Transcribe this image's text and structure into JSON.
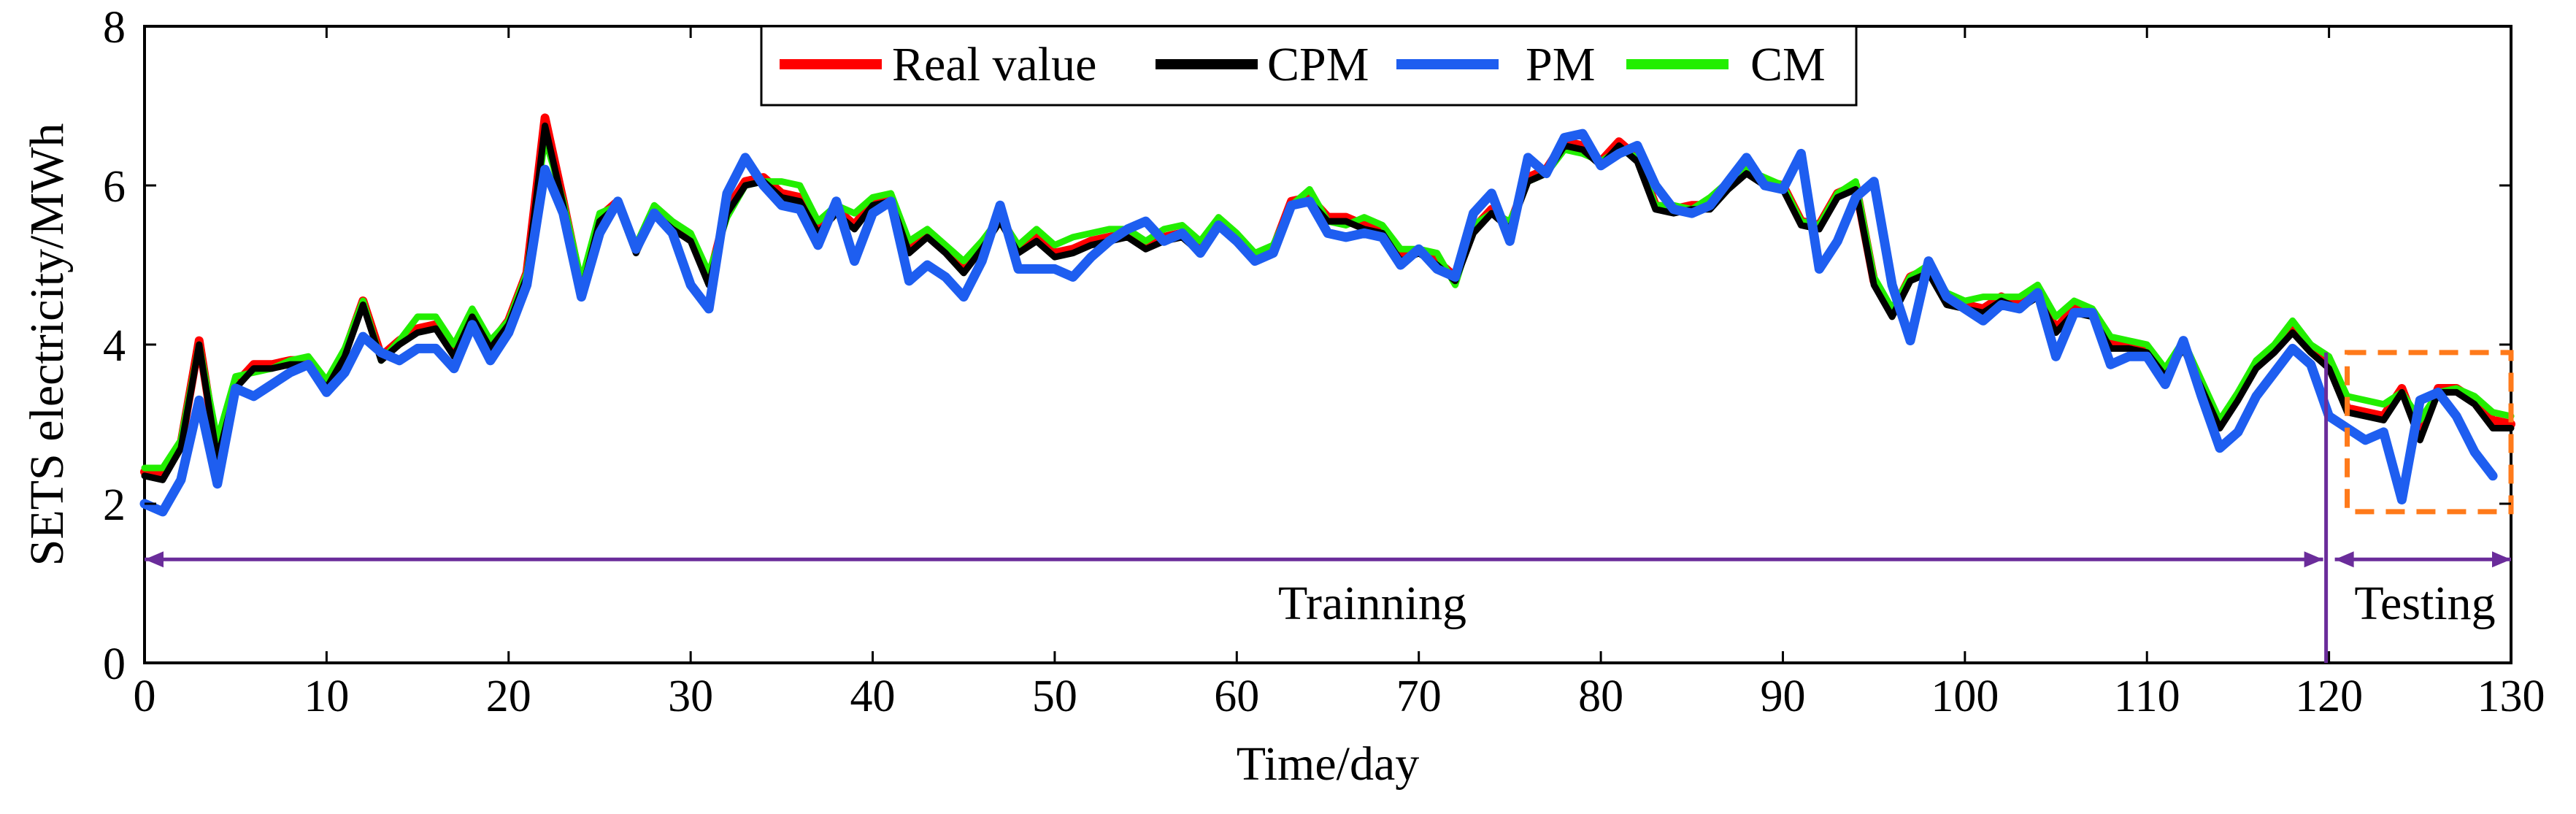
{
  "chart_data": {
    "type": "line",
    "title": "",
    "xlabel": "Time/day",
    "ylabel": "SETS electricity/MWh",
    "xlim": [
      0,
      130
    ],
    "ylim": [
      0,
      8
    ],
    "x_ticks": [
      0,
      10,
      20,
      30,
      40,
      50,
      60,
      70,
      80,
      90,
      100,
      110,
      120,
      130
    ],
    "y_ticks": [
      0,
      2,
      4,
      6,
      8
    ],
    "legend_position": "top-center",
    "grid": false,
    "series": [
      {
        "name": "Real value",
        "color": "#ff0000",
        "values": [
          2.4,
          2.35,
          2.75,
          4.05,
          2.6,
          3.5,
          3.75,
          3.75,
          3.8,
          3.8,
          3.5,
          3.9,
          4.55,
          3.85,
          4.05,
          4.2,
          4.25,
          3.9,
          4.4,
          4.0,
          4.3,
          4.9,
          6.85,
          5.8,
          4.7,
          5.6,
          5.8,
          5.2,
          5.7,
          5.5,
          5.35,
          4.8,
          5.7,
          6.05,
          6.1,
          5.9,
          5.85,
          5.45,
          5.7,
          5.5,
          5.8,
          5.85,
          5.2,
          5.4,
          5.2,
          4.95,
          5.25,
          5.6,
          5.2,
          5.35,
          5.15,
          5.2,
          5.3,
          5.35,
          5.4,
          5.25,
          5.35,
          5.4,
          5.2,
          5.55,
          5.35,
          5.1,
          5.2,
          5.8,
          5.85,
          5.6,
          5.6,
          5.5,
          5.45,
          5.1,
          5.2,
          5.05,
          4.85,
          5.45,
          5.7,
          5.5,
          6.1,
          6.2,
          6.55,
          6.5,
          6.3,
          6.55,
          6.35,
          5.75,
          5.7,
          5.75,
          5.75,
          6.0,
          6.2,
          6.05,
          6.0,
          5.55,
          5.5,
          5.9,
          6.0,
          4.8,
          4.4,
          4.85,
          4.95,
          4.55,
          4.5,
          4.45,
          4.6,
          4.5,
          4.65,
          4.2,
          4.45,
          4.4,
          4.0,
          4.0,
          3.95,
          3.65,
          4.0,
          3.5,
          3.0,
          3.35,
          3.75,
          3.95,
          4.2,
          3.95,
          3.75,
          3.2,
          3.15,
          3.1,
          3.45,
          2.85,
          3.45,
          3.45,
          3.3,
          3.05,
          3.0
        ],
        "legend_label": "Real value"
      },
      {
        "name": "CPM",
        "color": "#000000",
        "values": [
          2.35,
          2.3,
          2.7,
          4.0,
          2.55,
          3.45,
          3.7,
          3.7,
          3.75,
          3.75,
          3.45,
          3.85,
          4.5,
          3.8,
          4.0,
          4.15,
          4.2,
          3.85,
          4.35,
          3.95,
          4.25,
          4.85,
          6.75,
          5.75,
          4.65,
          5.55,
          5.75,
          5.15,
          5.65,
          5.45,
          5.3,
          4.75,
          5.65,
          6.0,
          6.05,
          5.85,
          5.8,
          5.4,
          5.65,
          5.45,
          5.75,
          5.8,
          5.15,
          5.35,
          5.15,
          4.9,
          5.2,
          5.55,
          5.15,
          5.3,
          5.1,
          5.15,
          5.25,
          5.3,
          5.35,
          5.2,
          5.3,
          5.35,
          5.15,
          5.5,
          5.3,
          5.05,
          5.15,
          5.75,
          5.8,
          5.55,
          5.55,
          5.45,
          5.4,
          5.05,
          5.15,
          5.0,
          4.8,
          5.4,
          5.65,
          5.45,
          6.05,
          6.15,
          6.5,
          6.45,
          6.25,
          6.5,
          6.3,
          5.7,
          5.65,
          5.7,
          5.7,
          5.95,
          6.15,
          6.0,
          5.95,
          5.5,
          5.45,
          5.85,
          5.95,
          4.75,
          4.35,
          4.8,
          4.9,
          4.5,
          4.45,
          4.4,
          4.55,
          4.45,
          4.6,
          4.15,
          4.4,
          4.35,
          3.95,
          3.95,
          3.9,
          3.6,
          3.95,
          3.45,
          2.95,
          3.3,
          3.7,
          3.9,
          4.15,
          3.9,
          3.7,
          3.15,
          3.1,
          3.05,
          3.4,
          2.8,
          3.4,
          3.4,
          3.25,
          2.95,
          2.95
        ],
        "legend_label": "CPM"
      },
      {
        "name": "CM",
        "color": "#22ee00",
        "values": [
          2.45,
          2.45,
          2.8,
          4.0,
          2.8,
          3.6,
          3.65,
          3.7,
          3.8,
          3.85,
          3.55,
          3.95,
          4.55,
          3.8,
          4.05,
          4.35,
          4.35,
          4.0,
          4.45,
          4.05,
          4.3,
          4.9,
          6.6,
          5.8,
          4.8,
          5.65,
          5.75,
          5.25,
          5.75,
          5.55,
          5.4,
          4.9,
          5.6,
          6.0,
          6.05,
          6.05,
          6.0,
          5.55,
          5.75,
          5.65,
          5.85,
          5.9,
          5.3,
          5.45,
          5.25,
          5.05,
          5.3,
          5.6,
          5.25,
          5.45,
          5.25,
          5.35,
          5.4,
          5.45,
          5.45,
          5.3,
          5.45,
          5.5,
          5.3,
          5.6,
          5.4,
          5.15,
          5.25,
          5.75,
          5.95,
          5.55,
          5.5,
          5.6,
          5.5,
          5.2,
          5.2,
          5.15,
          4.75,
          5.5,
          5.65,
          5.55,
          6.05,
          6.15,
          6.45,
          6.4,
          6.3,
          6.45,
          6.35,
          5.75,
          5.75,
          5.7,
          5.85,
          6.05,
          6.2,
          6.1,
          6.0,
          5.55,
          5.5,
          5.9,
          6.05,
          4.85,
          4.45,
          4.85,
          5.0,
          4.65,
          4.55,
          4.6,
          4.6,
          4.6,
          4.75,
          4.35,
          4.55,
          4.45,
          4.1,
          4.05,
          4.0,
          3.7,
          4.05,
          3.55,
          3.05,
          3.4,
          3.8,
          4.0,
          4.3,
          4.0,
          3.85,
          3.35,
          3.3,
          3.25,
          3.4,
          3.05,
          3.4,
          3.45,
          3.35,
          3.15,
          3.1
        ],
        "legend_label": "CM"
      },
      {
        "name": "PM",
        "color": "#1e5ef0",
        "values": [
          2.0,
          1.9,
          2.3,
          3.3,
          2.25,
          3.45,
          3.35,
          3.5,
          3.65,
          3.75,
          3.4,
          3.65,
          4.1,
          3.9,
          3.8,
          3.95,
          3.95,
          3.7,
          4.25,
          3.8,
          4.15,
          4.75,
          6.2,
          5.65,
          4.6,
          5.4,
          5.8,
          5.2,
          5.65,
          5.4,
          4.75,
          4.45,
          5.9,
          6.35,
          6.0,
          5.75,
          5.7,
          5.25,
          5.8,
          5.05,
          5.65,
          5.8,
          4.8,
          5.0,
          4.85,
          4.6,
          5.05,
          5.75,
          4.95,
          4.95,
          4.95,
          4.85,
          5.1,
          5.3,
          5.45,
          5.55,
          5.3,
          5.4,
          5.15,
          5.5,
          5.3,
          5.05,
          5.15,
          5.75,
          5.8,
          5.4,
          5.35,
          5.4,
          5.35,
          5.0,
          5.2,
          4.95,
          4.85,
          5.65,
          5.9,
          5.3,
          6.35,
          6.15,
          6.6,
          6.65,
          6.25,
          6.4,
          6.5,
          6.0,
          5.7,
          5.65,
          5.75,
          6.05,
          6.35,
          6.0,
          5.95,
          6.4,
          4.95,
          5.3,
          5.85,
          6.05,
          4.75,
          4.05,
          5.05,
          4.6,
          4.45,
          4.3,
          4.5,
          4.45,
          4.65,
          3.85,
          4.4,
          4.4,
          3.75,
          3.85,
          3.85,
          3.5,
          4.05,
          3.35,
          2.7,
          2.9,
          3.35,
          3.65,
          3.95,
          3.75,
          3.1,
          2.95,
          2.8,
          2.9,
          2.05,
          3.3,
          3.4,
          3.1,
          2.65,
          2.35
        ],
        "legend_label": "PM"
      }
    ],
    "annotations": {
      "training_label": "Trainning",
      "testing_label": "Testing",
      "split_x": 120,
      "training_range": [
        0,
        120
      ],
      "testing_range": [
        120,
        130
      ],
      "arrow_y": 1.3,
      "highlight_box": {
        "x_range": [
          121,
          130
        ],
        "y_range": [
          1.9,
          3.9
        ],
        "color": "#ff7a1a"
      },
      "arrow_color": "#6a2c9a"
    }
  }
}
